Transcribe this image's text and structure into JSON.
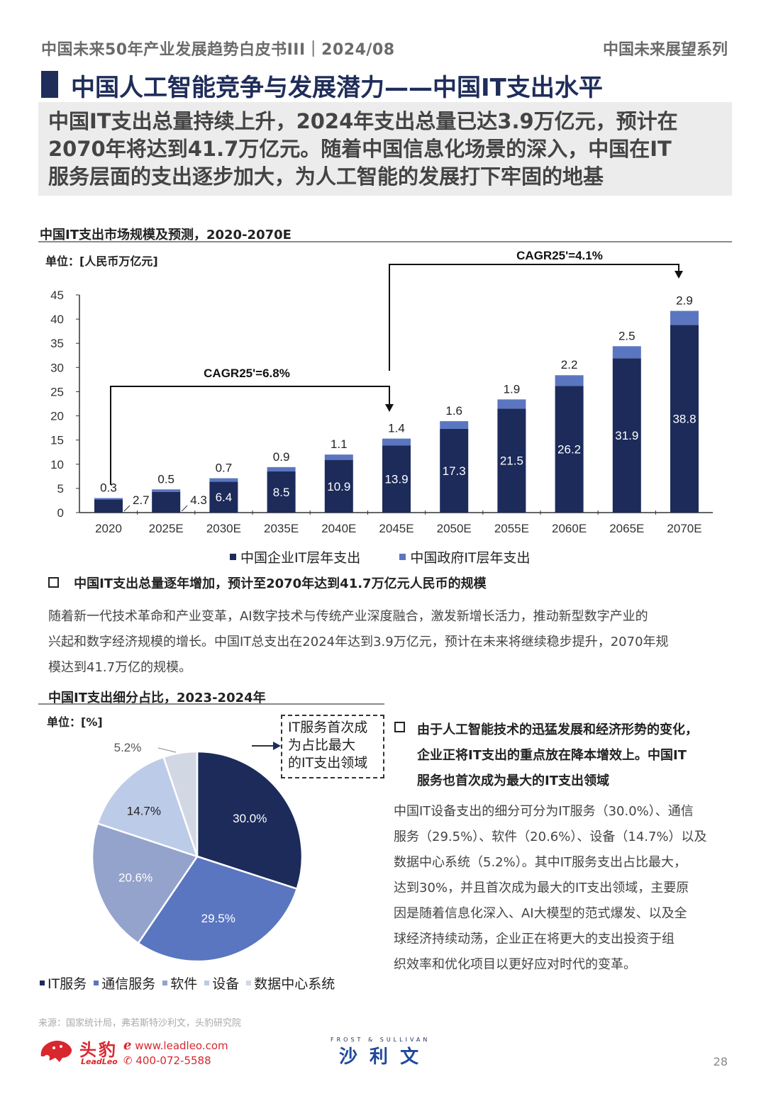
{
  "header": {
    "left": "中国未来50年产业发展趋势白皮书III｜2024/08",
    "right": "中国未来展望系列"
  },
  "page_title": "中国人工智能竞争与发展潜力——中国IT支出水平",
  "summary": [
    "中国IT支出总量持续上升，2024年支出总量已达3.9万亿元，预计在",
    "2070年将达到41.7万亿元。随着中国信息化场景的深入，中国在IT",
    "服务层面的支出逐步加大，为人工智能的发展打下牢固的地基"
  ],
  "section1": {
    "title": "中国IT支出市场规模及预测，2020-2070E",
    "unit": "单位：[人民币万亿元]",
    "cagr_left": "CAGR25'=6.8%",
    "cagr_right": "CAGR25'=4.1%"
  },
  "chart_data": [
    {
      "type": "bar",
      "stacked": true,
      "categories": [
        "2020",
        "2025E",
        "2030E",
        "2035E",
        "2040E",
        "2045E",
        "2050E",
        "2055E",
        "2060E",
        "2065E",
        "2070E"
      ],
      "series": [
        {
          "name": "中国企业IT层年支出",
          "values": [
            2.7,
            4.3,
            6.4,
            8.5,
            10.9,
            13.9,
            17.3,
            21.5,
            26.2,
            31.9,
            38.8
          ],
          "color": "#1c2b5a"
        },
        {
          "name": "中国政府IT层年支出",
          "values": [
            0.3,
            0.5,
            0.7,
            0.9,
            1.1,
            1.4,
            1.6,
            1.9,
            2.2,
            2.5,
            2.9
          ],
          "color": "#5b76c0"
        }
      ],
      "yticks": [
        0,
        5,
        10,
        15,
        20,
        25,
        30,
        35,
        40,
        45
      ],
      "ylim": [
        0,
        45
      ],
      "legend": "bottom",
      "grid": false
    },
    {
      "type": "pie",
      "labels": [
        "IT服务",
        "通信服务",
        "软件",
        "设备",
        "数据中心系统"
      ],
      "values": [
        30.0,
        29.5,
        20.6,
        14.7,
        5.2
      ],
      "value_labels": [
        "30.0%",
        "29.5%",
        "20.6%",
        "14.7%",
        "5.2%"
      ],
      "colors": [
        "#1c2b5a",
        "#5b76c0",
        "#94a3cc",
        "#bccbe8",
        "#d2d8e3"
      ],
      "legend": "bottom"
    }
  ],
  "bullet1": {
    "head": "中国IT支出总量逐年增加，预计至2070年达到41.7万亿元人民币的规模",
    "body": [
      "随着新一代技术革命和产业变革，AI数字技术与传统产业深度融合，激发新增长活力，推动新型数字产业的",
      "兴起和数字经济规模的增长。中国IT总支出在2024年达到3.9万亿元，预计在未来将继续稳步提升，2070年规",
      "模达到41.7万亿的规模。"
    ]
  },
  "section2": {
    "title": "中国IT支出细分占比，2023-2024年",
    "unit": "单位：[%]",
    "callout": [
      "IT服务首次成",
      "为占比最大",
      "的IT支出领域"
    ]
  },
  "bullet2": {
    "head": [
      "由于人工智能技术的迅猛发展和经济形势的变化，",
      "企业正将IT支出的重点放在降本增效上。中国IT",
      "服务也首次成为最大的IT支出领域"
    ],
    "body": [
      "中国IT设备支出的细分可分为IT服务（30.0%）、通信",
      "服务（29.5%）、软件（20.6%）、设备（14.7%）以及",
      "数据中心系统（5.2%）。其中IT服务支出占比最大，",
      "达到30%，并且首次成为最大的IT支出领域，主要原",
      "因是随着信息化深入、AI大模型的范式爆发、以及全",
      "球经济持续动荡，企业正在将更大的支出投资于组",
      "织效率和优化项目以更好应对时代的变革。"
    ]
  },
  "footer": {
    "source": "来源：国家统计局，弗若斯特沙利文，头豹研究院",
    "logo_cn": "头豹",
    "logo_en": "LeadLeo",
    "website": "www.leadleo.com",
    "phone": "400-072-5588",
    "partner_en": "FROST & SULLIVAN",
    "partner_cn": "沙 利 文",
    "page_number": "28"
  }
}
